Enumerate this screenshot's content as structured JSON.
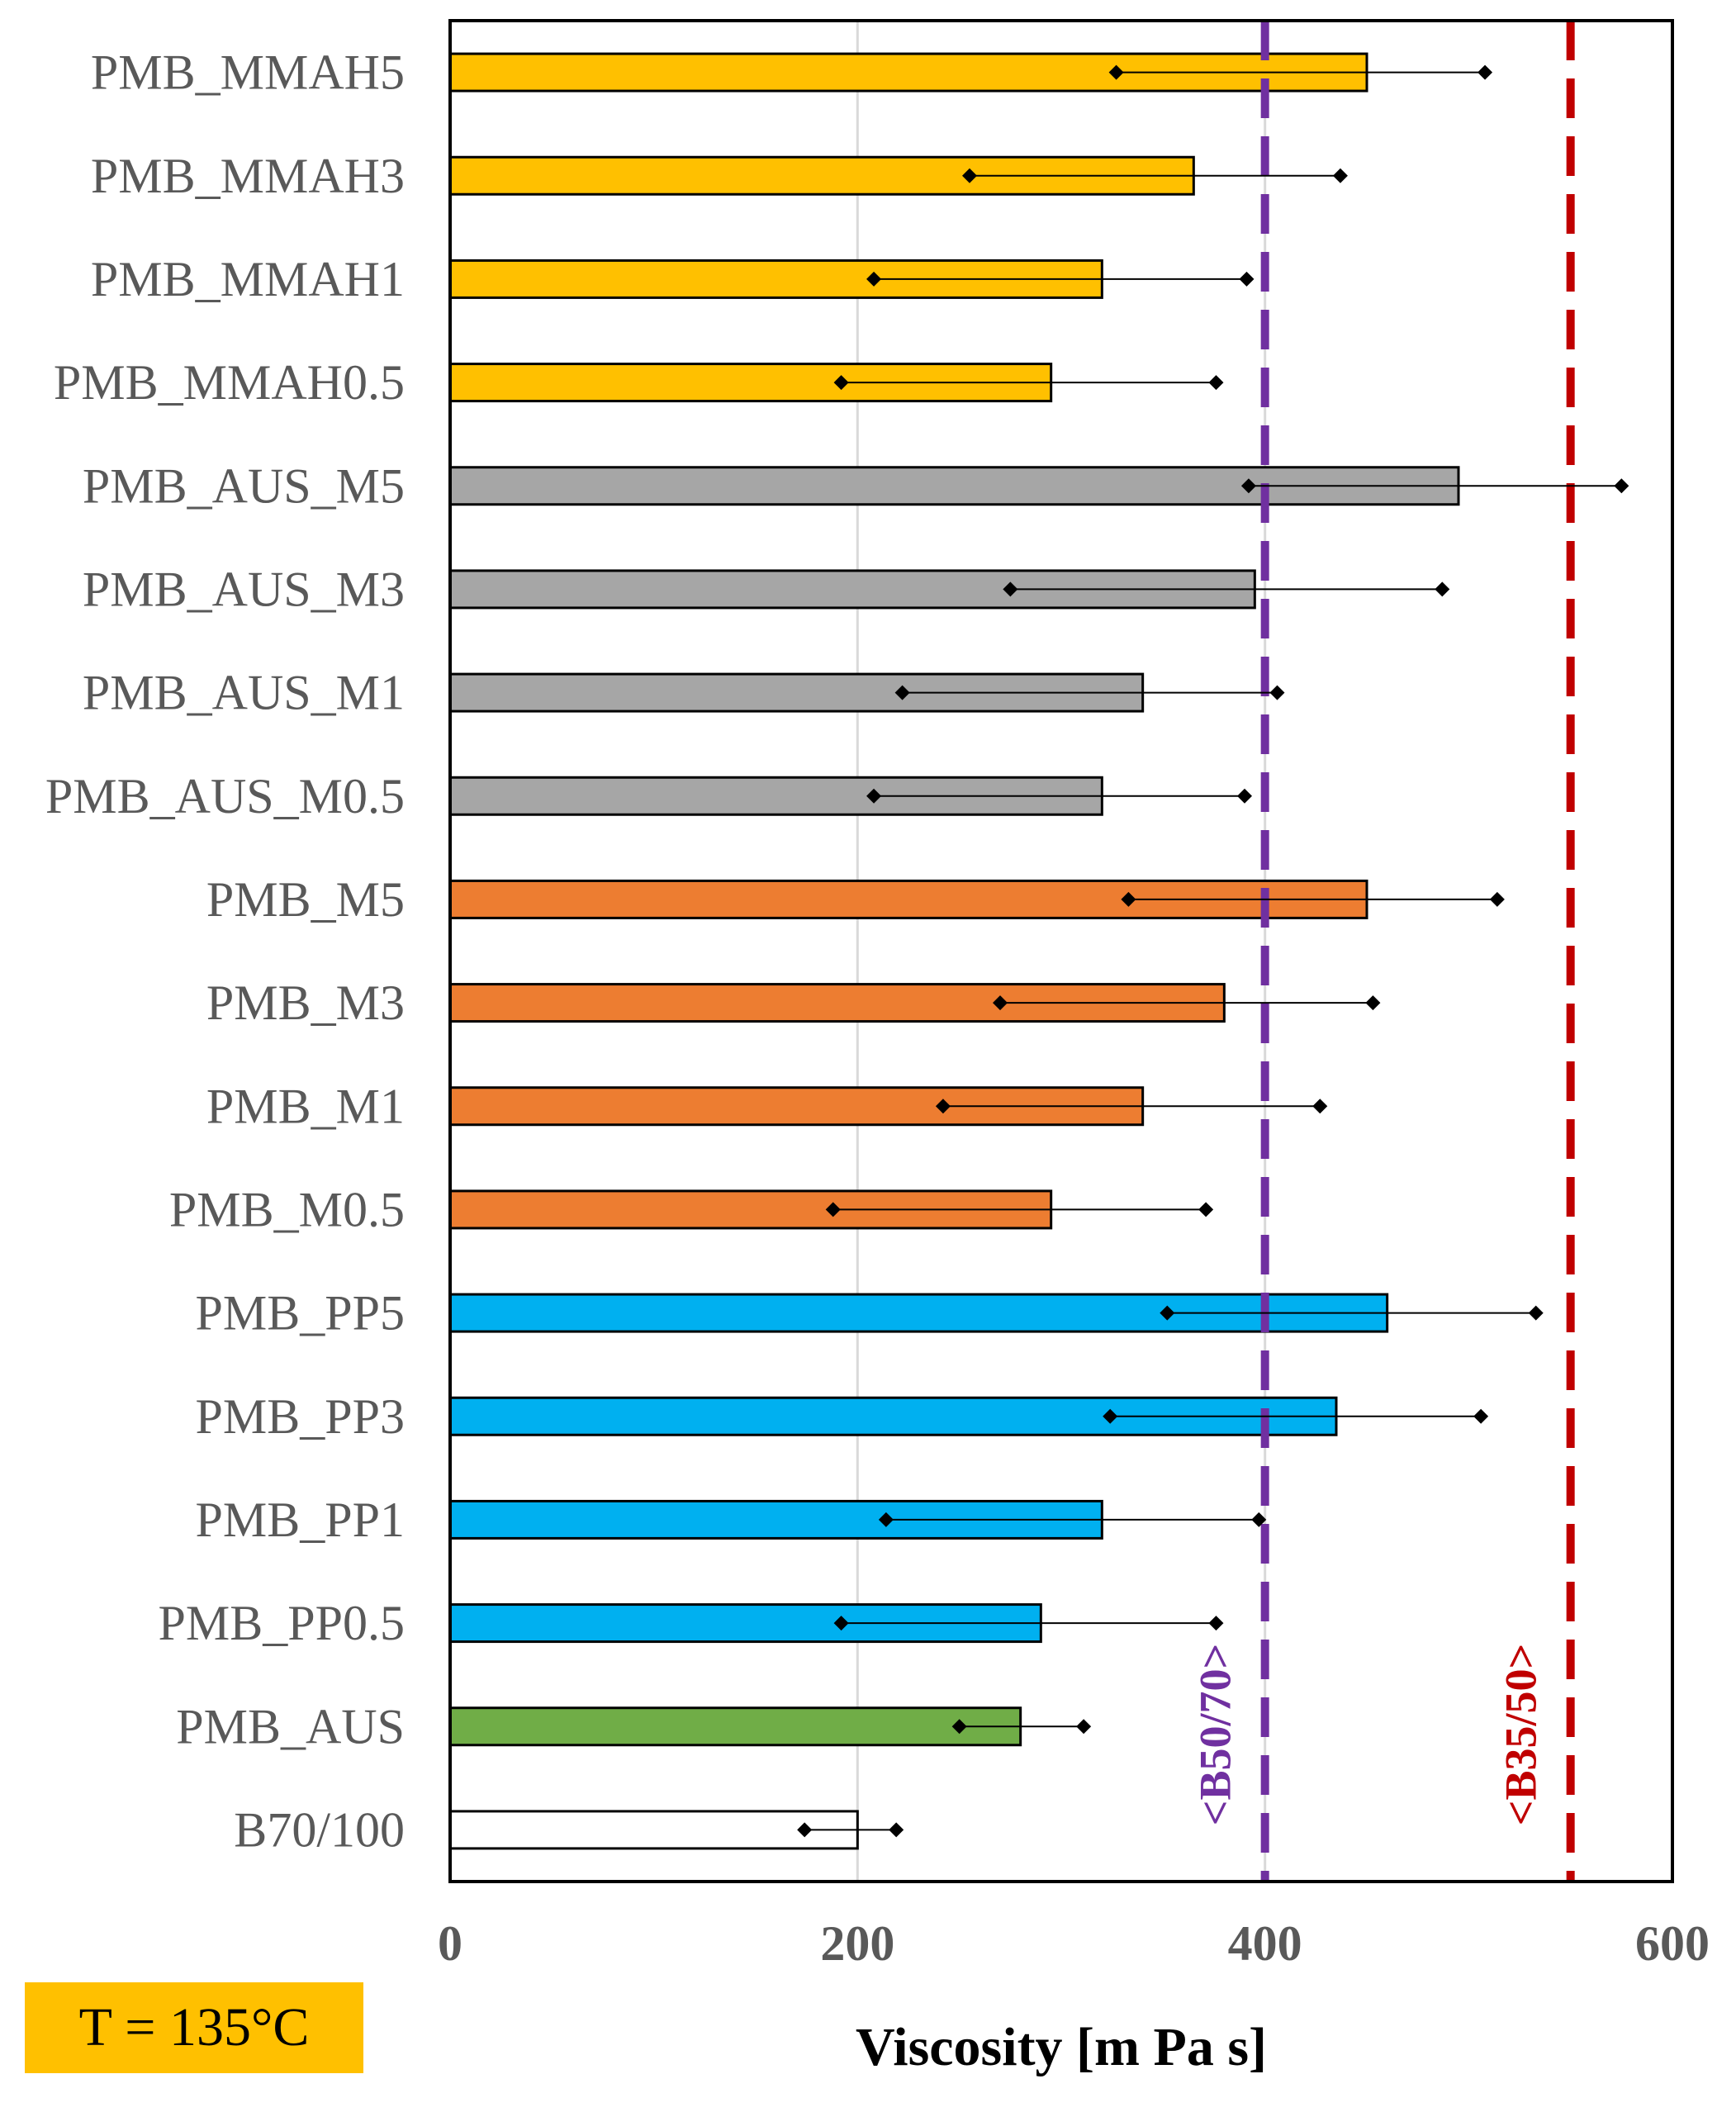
{
  "chart_data": {
    "type": "bar",
    "orientation": "horizontal",
    "xlabel": "Viscosity [m Pa s]",
    "ylabel": "",
    "xlim": [
      0,
      600
    ],
    "xticks": [
      0,
      200,
      400,
      600
    ],
    "grid": "vertical major gridlines",
    "categories": [
      "PMB_MMAH5",
      "PMB_MMAH3",
      "PMB_MMAH1",
      "PMB_MMAH0.5",
      "PMB_AUS_M5",
      "PMB_AUS_M3",
      "PMB_AUS_M1",
      "PMB_AUS_M0.5",
      "PMB_M5",
      "PMB_M3",
      "PMB_M1",
      "PMB_M0.5",
      "PMB_PP5",
      "PMB_PP3",
      "PMB_PP1",
      "PMB_PP0.5",
      "PMB_AUS",
      "B70/100"
    ],
    "values": [
      450,
      365,
      320,
      295,
      495,
      395,
      340,
      320,
      450,
      380,
      340,
      295,
      460,
      435,
      320,
      290,
      280,
      200
    ],
    "range_low": [
      327,
      255,
      208,
      192,
      392,
      275,
      222,
      208,
      333,
      270,
      242,
      188,
      352,
      324,
      214,
      192,
      250,
      174
    ],
    "range_high": [
      508,
      437,
      391,
      376,
      575,
      487,
      406,
      390,
      514,
      453,
      427,
      371,
      533,
      506,
      397,
      376,
      311,
      219
    ],
    "bar_colors": [
      "#ffc000",
      "#ffc000",
      "#ffc000",
      "#ffc000",
      "#a6a6a6",
      "#a6a6a6",
      "#a6a6a6",
      "#a6a6a6",
      "#ed7d31",
      "#ed7d31",
      "#ed7d31",
      "#ed7d31",
      "#00b0f0",
      "#00b0f0",
      "#00b0f0",
      "#00b0f0",
      "#70ad47",
      "#ffffff"
    ],
    "reference_lines": [
      {
        "label": "<B50/70>",
        "value": 400,
        "color": "#7030a0",
        "style": "dashed"
      },
      {
        "label": "<B35/50>",
        "value": 550,
        "color": "#c00000",
        "style": "dashed"
      }
    ]
  },
  "annotation": {
    "temperature_label": "T = 135°C",
    "box_color": "#ffc000"
  }
}
